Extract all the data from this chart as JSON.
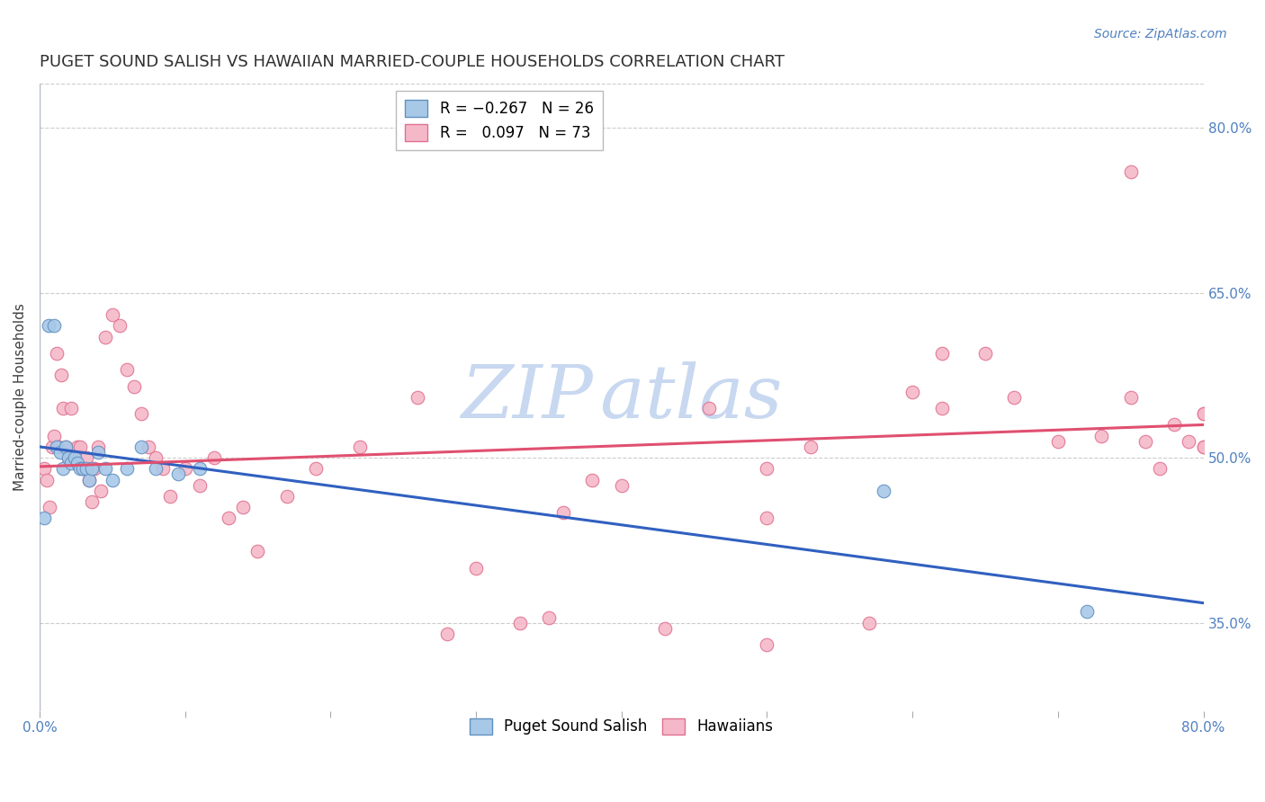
{
  "title": "PUGET SOUND SALISH VS HAWAIIAN MARRIED-COUPLE HOUSEHOLDS CORRELATION CHART",
  "source": "Source: ZipAtlas.com",
  "ylabel": "Married-couple Households",
  "right_ytick_labels": [
    "35.0%",
    "50.0%",
    "65.0%",
    "80.0%"
  ],
  "right_ytick_values": [
    0.35,
    0.5,
    0.65,
    0.8
  ],
  "xlim": [
    0.0,
    0.8
  ],
  "ylim": [
    0.27,
    0.84
  ],
  "xtick_values": [
    0.0,
    0.1,
    0.2,
    0.3,
    0.4,
    0.5,
    0.6,
    0.7,
    0.8
  ],
  "xticklabels": [
    "0.0%",
    "",
    "",
    "",
    "",
    "",
    "",
    "",
    "80.0%"
  ],
  "blue_scatter_x": [
    0.003,
    0.006,
    0.01,
    0.012,
    0.014,
    0.016,
    0.018,
    0.02,
    0.022,
    0.024,
    0.026,
    0.028,
    0.03,
    0.032,
    0.034,
    0.036,
    0.04,
    0.045,
    0.05,
    0.06,
    0.07,
    0.08,
    0.095,
    0.11,
    0.58,
    0.72
  ],
  "blue_scatter_y": [
    0.445,
    0.62,
    0.62,
    0.51,
    0.505,
    0.49,
    0.51,
    0.5,
    0.495,
    0.5,
    0.495,
    0.49,
    0.49,
    0.49,
    0.48,
    0.49,
    0.505,
    0.49,
    0.48,
    0.49,
    0.51,
    0.49,
    0.485,
    0.49,
    0.47,
    0.36
  ],
  "pink_scatter_x": [
    0.003,
    0.005,
    0.007,
    0.009,
    0.01,
    0.012,
    0.013,
    0.015,
    0.016,
    0.018,
    0.02,
    0.022,
    0.024,
    0.026,
    0.028,
    0.03,
    0.032,
    0.034,
    0.036,
    0.038,
    0.04,
    0.042,
    0.045,
    0.05,
    0.055,
    0.06,
    0.065,
    0.07,
    0.075,
    0.08,
    0.085,
    0.09,
    0.1,
    0.11,
    0.12,
    0.13,
    0.14,
    0.15,
    0.17,
    0.19,
    0.22,
    0.26,
    0.3,
    0.33,
    0.36,
    0.38,
    0.4,
    0.43,
    0.46,
    0.5,
    0.53,
    0.57,
    0.6,
    0.62,
    0.65,
    0.67,
    0.7,
    0.73,
    0.75,
    0.77,
    0.79,
    0.8,
    0.8,
    0.62,
    0.75,
    0.8,
    0.8,
    0.78,
    0.76,
    0.5,
    0.35,
    0.28,
    0.5
  ],
  "pink_scatter_y": [
    0.49,
    0.48,
    0.455,
    0.51,
    0.52,
    0.595,
    0.51,
    0.575,
    0.545,
    0.51,
    0.5,
    0.545,
    0.505,
    0.51,
    0.51,
    0.49,
    0.5,
    0.48,
    0.46,
    0.49,
    0.51,
    0.47,
    0.61,
    0.63,
    0.62,
    0.58,
    0.565,
    0.54,
    0.51,
    0.5,
    0.49,
    0.465,
    0.49,
    0.475,
    0.5,
    0.445,
    0.455,
    0.415,
    0.465,
    0.49,
    0.51,
    0.555,
    0.4,
    0.35,
    0.45,
    0.48,
    0.475,
    0.345,
    0.545,
    0.445,
    0.51,
    0.35,
    0.56,
    0.545,
    0.595,
    0.555,
    0.515,
    0.52,
    0.76,
    0.49,
    0.515,
    0.51,
    0.54,
    0.595,
    0.555,
    0.51,
    0.54,
    0.53,
    0.515,
    0.49,
    0.355,
    0.34,
    0.33
  ],
  "blue_line_x": [
    0.0,
    0.8
  ],
  "blue_line_y": [
    0.51,
    0.368
  ],
  "pink_line_x": [
    0.0,
    0.8
  ],
  "pink_line_y": [
    0.492,
    0.53
  ],
  "dot_size": 110,
  "blue_color": "#a8c8e8",
  "blue_edge_color": "#6090c0",
  "pink_color": "#f5b8c8",
  "pink_edge_color": "#e07090",
  "blue_line_color": "#3060c0",
  "pink_line_color": "#e05070",
  "grid_color": "#cccccc",
  "background_color": "#ffffff",
  "watermark_color": "#c8d8f0",
  "title_fontsize": 13,
  "source_fontsize": 10,
  "axis_label_fontsize": 11,
  "tick_fontsize": 11,
  "tick_color": "#5080c0",
  "legend_fontsize": 12
}
